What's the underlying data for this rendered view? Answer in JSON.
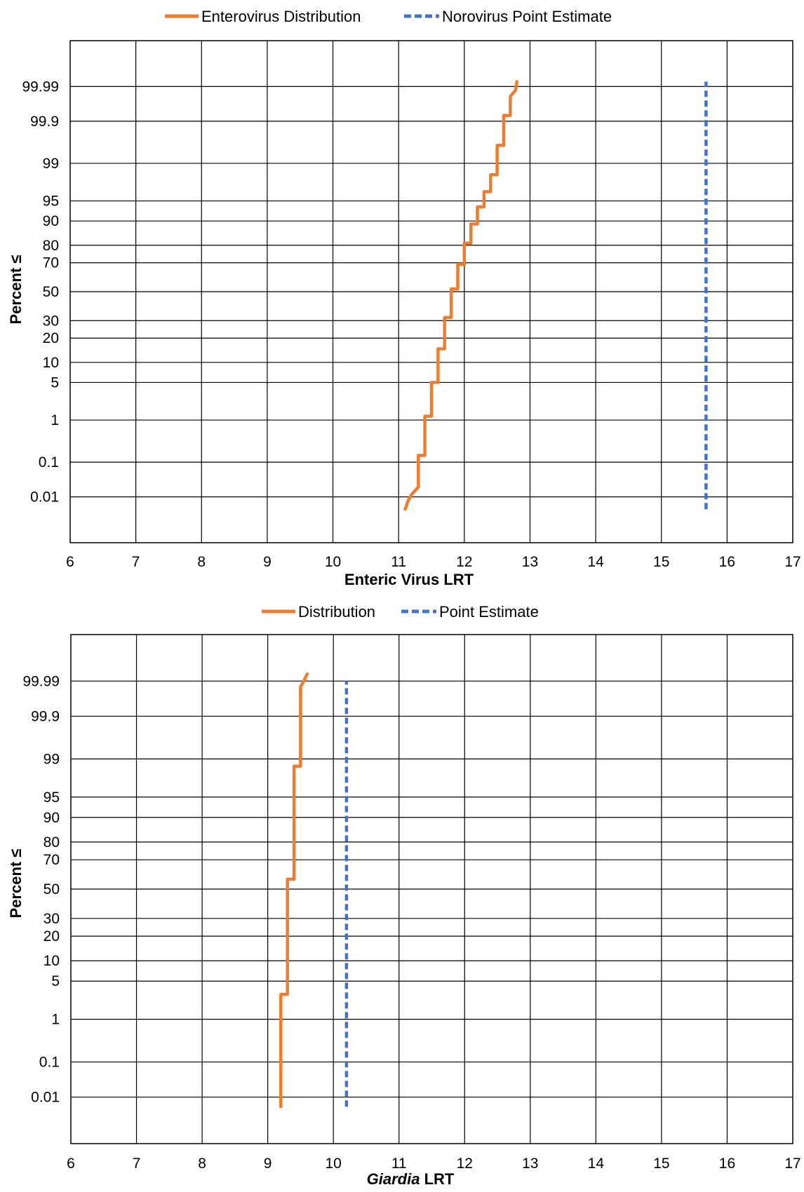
{
  "chart_data": [
    {
      "type": "line",
      "title": "",
      "xlabel": "Enteric Virus LRT",
      "xlabel_italic_part": "",
      "ylabel": "Percent ≤",
      "xlim": [
        6,
        17
      ],
      "x_ticks": [
        "6",
        "7",
        "8",
        "9",
        "10",
        "11",
        "12",
        "13",
        "14",
        "15",
        "16",
        "17"
      ],
      "y_scale": "normal-probability",
      "y_ticks": [
        "0.01",
        "0.1",
        "1",
        "5",
        "10",
        "20",
        "30",
        "50",
        "70",
        "80",
        "90",
        "95",
        "99",
        "99.9",
        "99.99"
      ],
      "y_tick_values": [
        0.01,
        0.1,
        1,
        5,
        10,
        20,
        30,
        50,
        70,
        80,
        90,
        95,
        99,
        99.9,
        99.99
      ],
      "grid": true,
      "legend_position": "top",
      "series": [
        {
          "name": "Enterovirus Distribution",
          "color": "#ED7D31",
          "style": "solid",
          "points": [
            [
              11.1,
              0.004
            ],
            [
              11.15,
              0.008
            ],
            [
              11.2,
              0.012
            ],
            [
              11.3,
              0.02
            ],
            [
              11.3,
              0.15
            ],
            [
              11.4,
              0.15
            ],
            [
              11.4,
              1.2
            ],
            [
              11.5,
              1.2
            ],
            [
              11.5,
              5
            ],
            [
              11.6,
              5
            ],
            [
              11.6,
              15
            ],
            [
              11.7,
              15
            ],
            [
              11.7,
              32
            ],
            [
              11.8,
              32
            ],
            [
              11.8,
              52
            ],
            [
              11.9,
              52
            ],
            [
              11.9,
              69
            ],
            [
              12.0,
              69
            ],
            [
              12.0,
              81
            ],
            [
              12.1,
              81
            ],
            [
              12.1,
              89
            ],
            [
              12.2,
              89
            ],
            [
              12.2,
              93.8
            ],
            [
              12.3,
              93.8
            ],
            [
              12.3,
              96.5
            ],
            [
              12.4,
              96.5
            ],
            [
              12.4,
              98.3
            ],
            [
              12.5,
              98.3
            ],
            [
              12.5,
              99.6
            ],
            [
              12.6,
              99.6
            ],
            [
              12.6,
              99.93
            ],
            [
              12.7,
              99.93
            ],
            [
              12.7,
              99.98
            ],
            [
              12.78,
              99.987
            ],
            [
              12.8,
              99.993
            ]
          ]
        },
        {
          "name": "Norovirus Point Estimate",
          "color": "#4472C4",
          "style": "dashed",
          "points": [
            [
              15.68,
              0.004
            ],
            [
              15.68,
              99.993
            ]
          ]
        }
      ]
    },
    {
      "type": "line",
      "title": "",
      "xlabel": "Giardia",
      "xlabel_suffix": " LRT",
      "ylabel": "Percent ≤",
      "xlim": [
        6,
        17
      ],
      "x_ticks": [
        "6",
        "7",
        "8",
        "9",
        "10",
        "11",
        "12",
        "13",
        "14",
        "15",
        "16",
        "17"
      ],
      "y_scale": "normal-probability",
      "y_ticks": [
        "0.01",
        "0.1",
        "1",
        "5",
        "10",
        "20",
        "30",
        "50",
        "70",
        "80",
        "90",
        "95",
        "99",
        "99.9",
        "99.99"
      ],
      "y_tick_values": [
        0.01,
        0.1,
        1,
        5,
        10,
        20,
        30,
        50,
        70,
        80,
        90,
        95,
        99,
        99.9,
        99.99
      ],
      "grid": true,
      "legend_position": "top",
      "series": [
        {
          "name": "Distribution",
          "color": "#ED7D31",
          "style": "solid",
          "points": [
            [
              9.2,
              0.005
            ],
            [
              9.2,
              3
            ],
            [
              9.3,
              3
            ],
            [
              9.3,
              57
            ],
            [
              9.4,
              57
            ],
            [
              9.4,
              98.6
            ],
            [
              9.5,
              98.6
            ],
            [
              9.5,
              99.985
            ],
            [
              9.55,
              99.99
            ],
            [
              9.6,
              99.994
            ]
          ]
        },
        {
          "name": "Point Estimate",
          "color": "#4472C4",
          "style": "dashed",
          "points": [
            [
              10.2,
              0.005
            ],
            [
              10.2,
              99.99
            ]
          ]
        }
      ]
    }
  ]
}
